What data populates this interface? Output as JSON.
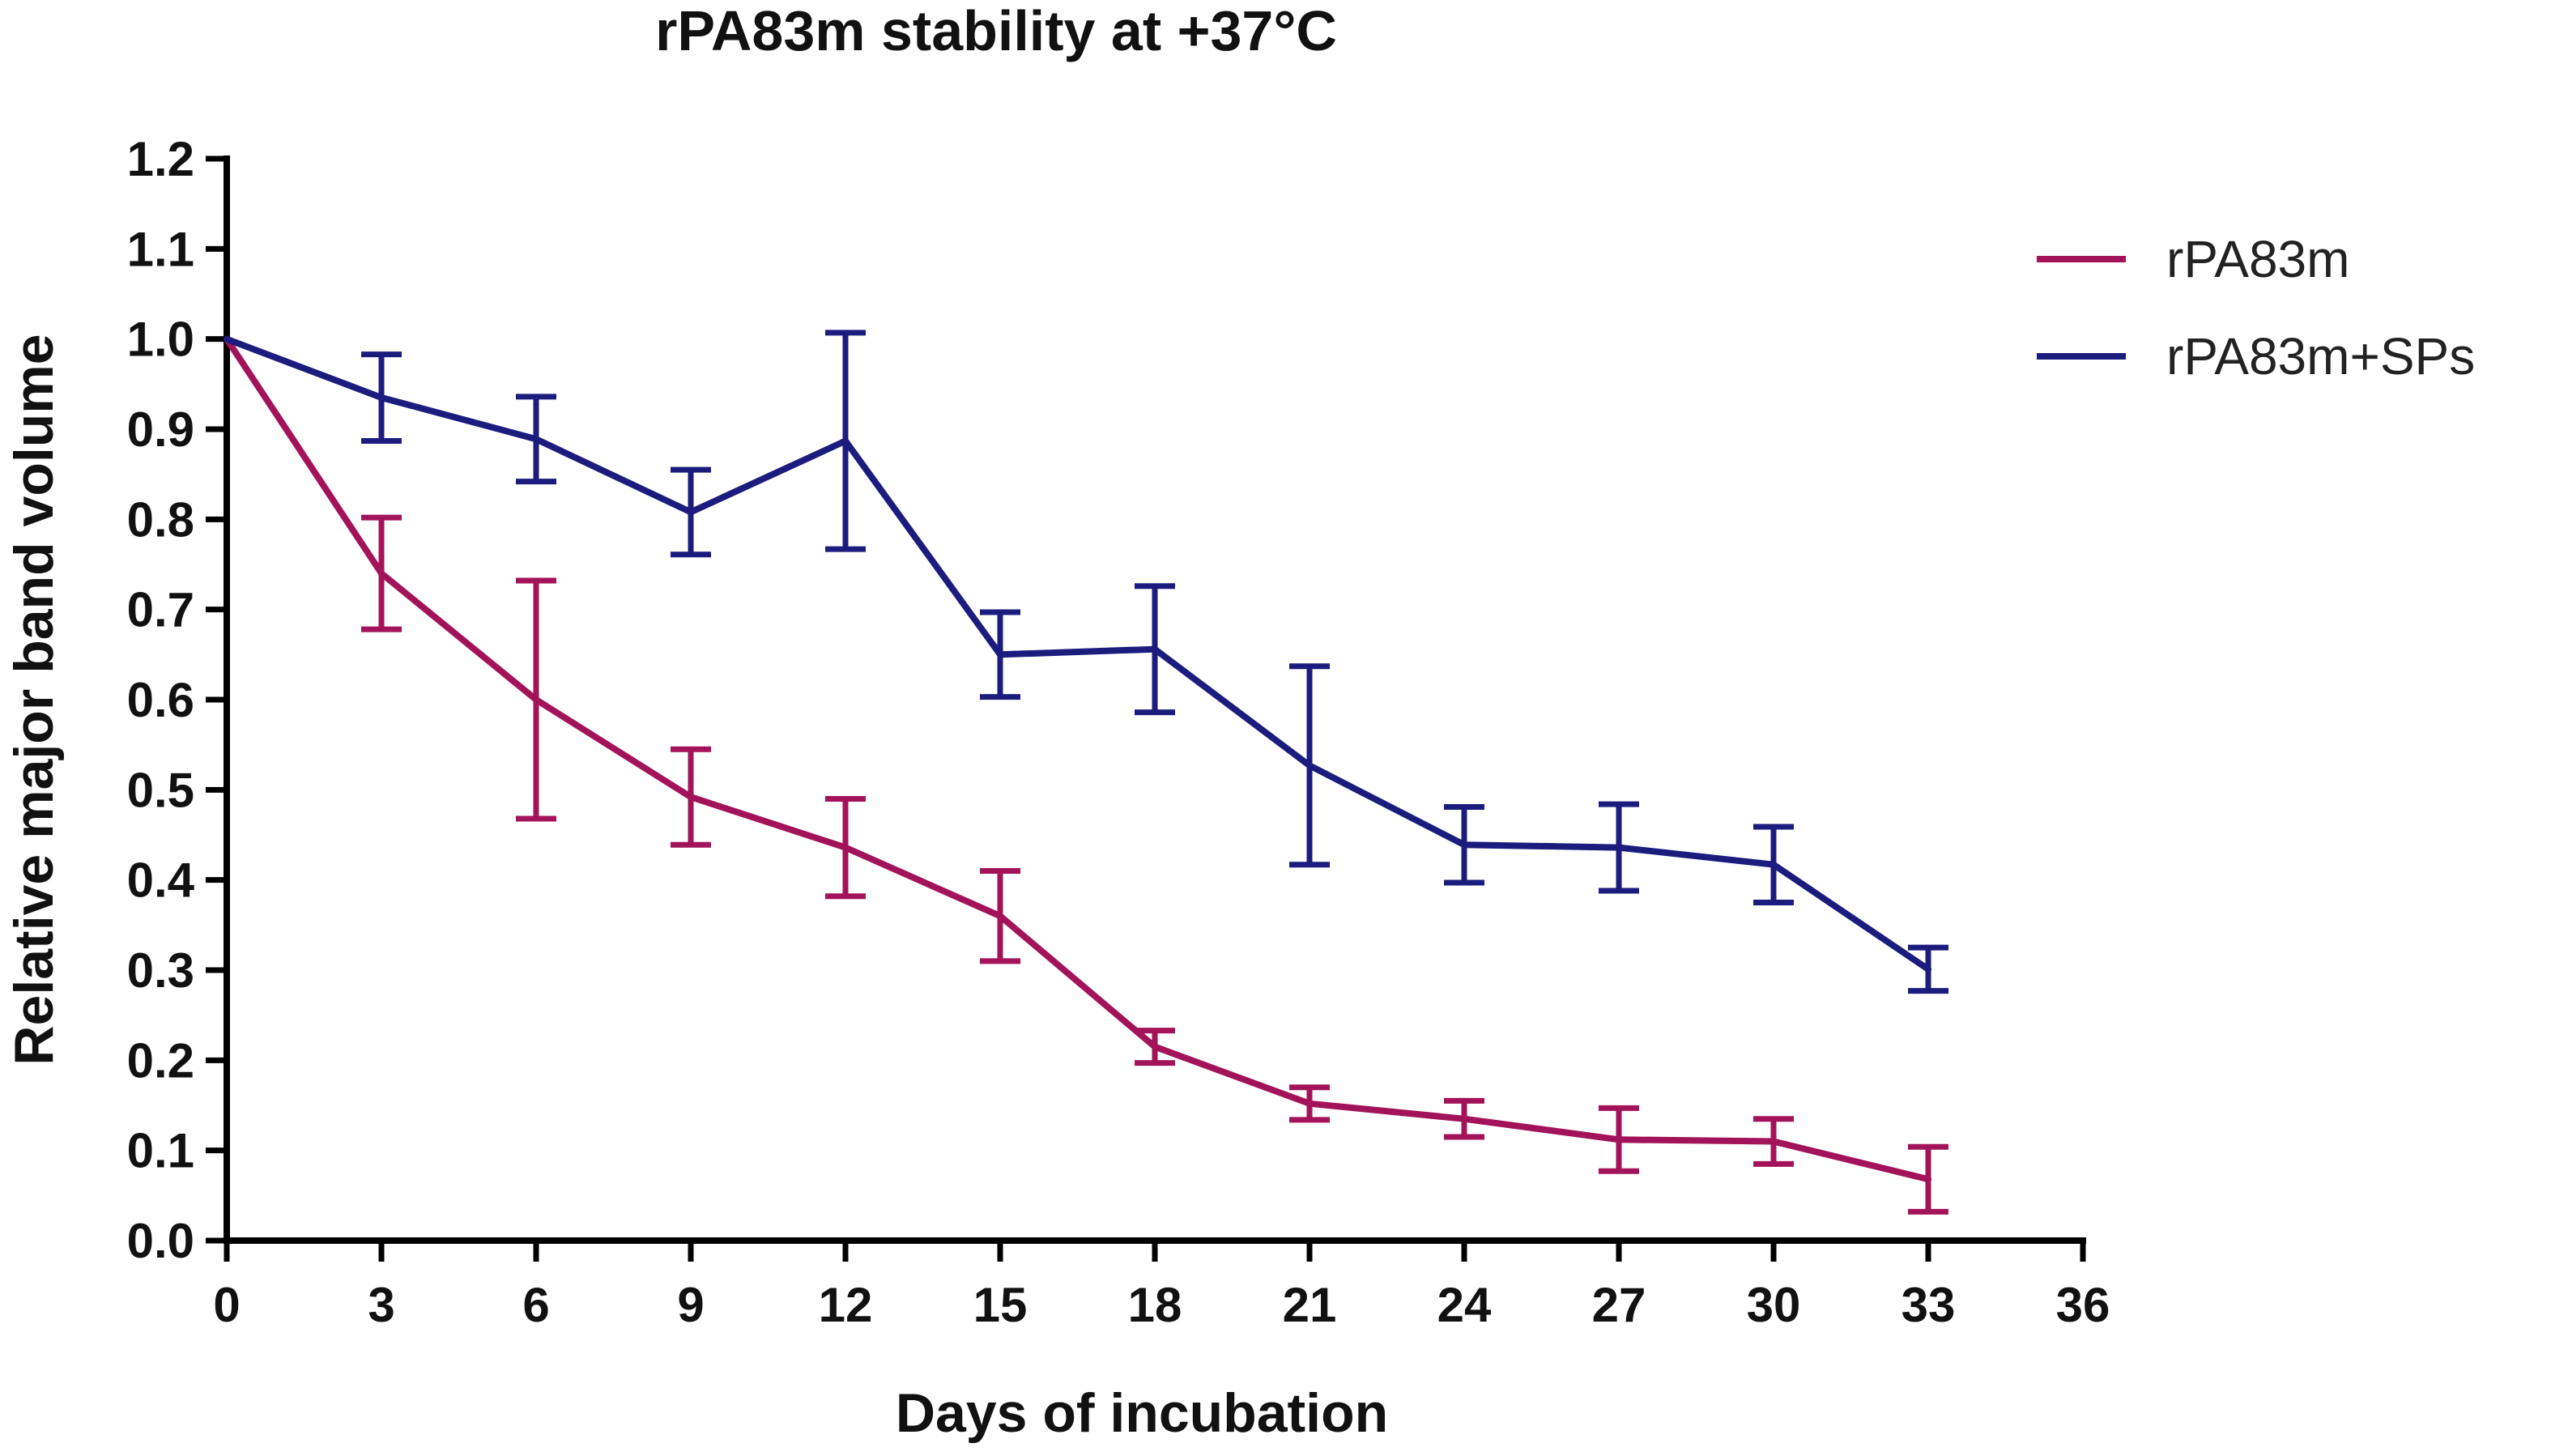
{
  "chart_data": {
    "type": "line",
    "title": "rPA83m stability at +37°C",
    "xlabel": "Days of incubation",
    "ylabel": "Relative major band volume",
    "xlim": [
      0,
      36
    ],
    "ylim": [
      0,
      1.2
    ],
    "x_ticks": [
      "0",
      "3",
      "6",
      "9",
      "12",
      "15",
      "18",
      "21",
      "24",
      "27",
      "30",
      "33",
      "36"
    ],
    "y_ticks": [
      "0.0",
      "0.1",
      "0.2",
      "0.3",
      "0.4",
      "0.5",
      "0.6",
      "0.7",
      "0.8",
      "0.9",
      "1.0",
      "1.1",
      "1.2"
    ],
    "grid": false,
    "legend_position": "top-right",
    "series": [
      {
        "name": "rPA83m",
        "color": "#a3135a",
        "x": [
          0,
          3,
          6,
          9,
          12,
          15,
          18,
          21,
          24,
          27,
          30,
          33
        ],
        "y": [
          1.0,
          0.74,
          0.6,
          0.492,
          0.436,
          0.36,
          0.215,
          0.152,
          0.135,
          0.112,
          0.11,
          0.068
        ],
        "error": [
          0,
          0.062,
          0.132,
          0.053,
          0.054,
          0.05,
          0.018,
          0.018,
          0.02,
          0.035,
          0.025,
          0.036
        ]
      },
      {
        "name": "rPA83m+SPs",
        "color": "#1c1c7e",
        "x": [
          0,
          3,
          6,
          9,
          12,
          15,
          18,
          21,
          24,
          27,
          30,
          33
        ],
        "y": [
          1.0,
          0.935,
          0.889,
          0.808,
          0.887,
          0.65,
          0.656,
          0.527,
          0.439,
          0.436,
          0.417,
          0.301
        ],
        "error": [
          0,
          0.048,
          0.047,
          0.047,
          0.12,
          0.047,
          0.07,
          0.11,
          0.042,
          0.048,
          0.042,
          0.024
        ]
      }
    ]
  }
}
